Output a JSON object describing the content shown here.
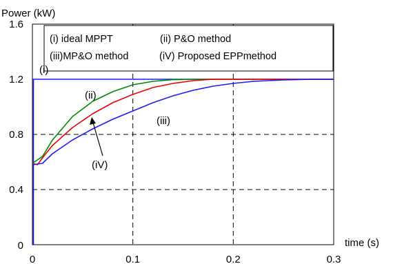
{
  "chart_data": {
    "type": "line",
    "xlabel": "time (s)",
    "ylabel": "Power (kW)",
    "xlim": [
      0,
      0.3
    ],
    "ylim": [
      0,
      1.6
    ],
    "x_ticks": [
      "0",
      "0.1",
      "0.2",
      "0.3"
    ],
    "y_ticks": [
      "0",
      "0.4",
      "0.8",
      "1.2",
      "1.6"
    ],
    "grid": "dashed",
    "legend_position": "top-left",
    "legend": {
      "row1": [
        "(i) ideal MPPT",
        "(ii) P&O method"
      ],
      "row2": [
        "(iii)MP&O method",
        "(iV) Proposed EPPmethod"
      ]
    },
    "series": [
      {
        "name": "(i) ideal MPPT",
        "label": "(i)",
        "color": "#1a1aff",
        "x": [
          0,
          0.001,
          0.001,
          0.3
        ],
        "y": [
          0,
          0.0,
          1.2,
          1.2
        ]
      },
      {
        "name": "(ii) P&O method",
        "label": "(ii)",
        "color": "#008800",
        "x": [
          0,
          0.01,
          0.02,
          0.04,
          0.06,
          0.08,
          0.1,
          0.12,
          0.14,
          0.16,
          0.18,
          0.2,
          0.3
        ],
        "y": [
          0.59,
          0.64,
          0.76,
          0.93,
          1.04,
          1.11,
          1.16,
          1.185,
          1.197,
          1.2,
          1.2,
          1.2,
          1.2
        ]
      },
      {
        "name": "(iV) Proposed EPPmethod",
        "label": "(iV)",
        "color": "#ee0000",
        "x": [
          0,
          0.005,
          0.01,
          0.02,
          0.04,
          0.06,
          0.08,
          0.1,
          0.12,
          0.14,
          0.16,
          0.18,
          0.2,
          0.3
        ],
        "y": [
          0.59,
          0.58,
          0.63,
          0.72,
          0.85,
          0.95,
          1.03,
          1.09,
          1.14,
          1.17,
          1.19,
          1.2,
          1.2,
          1.2
        ]
      },
      {
        "name": "(iii)MP&O method",
        "label": "(iii)",
        "color": "#1a1aff",
        "x": [
          0,
          0.01,
          0.02,
          0.04,
          0.06,
          0.08,
          0.1,
          0.12,
          0.14,
          0.16,
          0.18,
          0.2,
          0.22,
          0.25,
          0.28,
          0.3
        ],
        "y": [
          0.58,
          0.59,
          0.66,
          0.76,
          0.84,
          0.91,
          0.97,
          1.03,
          1.08,
          1.12,
          1.15,
          1.17,
          1.185,
          1.195,
          1.2,
          1.2
        ]
      }
    ]
  }
}
